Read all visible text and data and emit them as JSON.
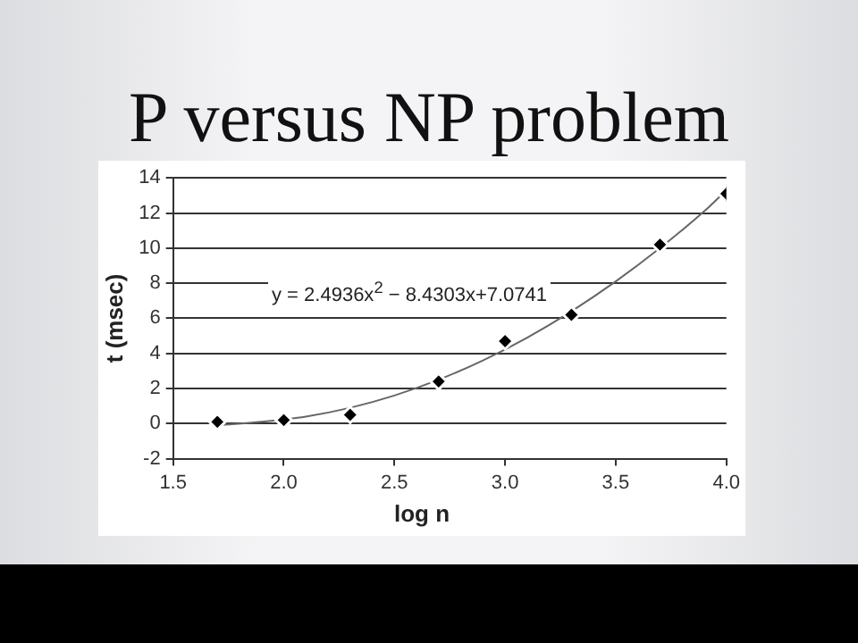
{
  "chart_data": {
    "type": "scatter",
    "title": "P versus NP problem",
    "xlabel": "log n",
    "ylabel": "t (msec)",
    "annotations": [
      "y = 2.4936x$^{2}$ − 8.4303x+7.0741"
    ],
    "series": [
      {
        "type": "scatter",
        "color": "#000000",
        "marker": "diamond",
        "x": [
          1.7,
          2.0,
          2.3,
          2.7,
          3.0,
          3.3,
          3.7,
          4.0
        ],
        "values": [
          0.1,
          0.2,
          0.5,
          2.4,
          4.7,
          6.2,
          10.2,
          13.1
        ]
      },
      {
        "type": "line",
        "color": "#666666",
        "marker": "none",
        "x": [
          1.7,
          1.9,
          2.1,
          2.3,
          2.5,
          2.7,
          2.9,
          3.1,
          3.3,
          3.5,
          3.7,
          3.9,
          4.0
        ],
        "values": [
          -0.1,
          0.1,
          0.4,
          0.9,
          1.6,
          2.5,
          3.6,
          4.9,
          6.4,
          8.1,
          10.0,
          12.1,
          13.3
        ]
      }
    ],
    "xlim": [
      1.5,
      4.0
    ],
    "xticks": [
      {
        "value": 1.5,
        "label": "1.5"
      },
      {
        "value": 2,
        "label": "2.0"
      },
      {
        "value": 2.5,
        "label": "2.5"
      },
      {
        "value": 3,
        "label": "3.0"
      },
      {
        "value": 3.5,
        "label": "3.5"
      },
      {
        "value": 4,
        "label": "4.0"
      }
    ],
    "ylim": [
      -2,
      14
    ],
    "yticks": [
      -2,
      0,
      2,
      4,
      6,
      8,
      10,
      12,
      14
    ],
    "grid": "y",
    "legend": false
  }
}
